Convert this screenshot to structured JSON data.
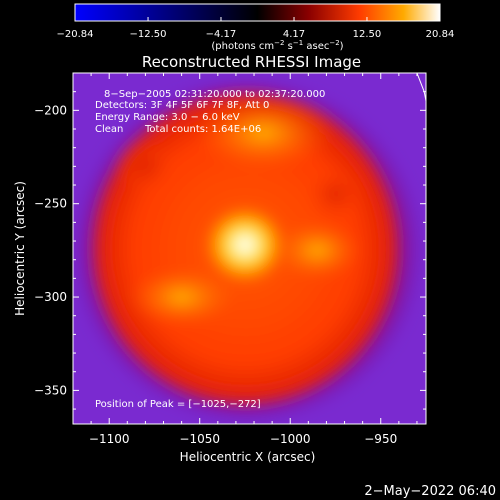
{
  "colorbar": {
    "ticks": [
      "−20.84",
      "−12.50",
      "−4.17",
      "4.17",
      "12.50",
      "20.84"
    ],
    "tick_values": [
      -20.84,
      -12.5,
      -4.17,
      4.17,
      12.5,
      20.84
    ],
    "unit_html": "(photons cm<tspan baseline-shift=\"super\" font-size=\"7\">−2</tspan> s<tspan baseline-shift=\"super\" font-size=\"7\">−1</tspan> asec<tspan baseline-shift=\"super\" font-size=\"7\">−2</tspan>)",
    "colors": [
      "#0000ff",
      "#000000",
      "#7a0000",
      "#ff3a00",
      "#ffaa00",
      "#ffffff"
    ]
  },
  "chart_data": {
    "type": "heatmap",
    "title": "Reconstructed RHESSI Image",
    "xlabel": "Heliocentric X (arcsec)",
    "ylabel": "Heliocentric Y (arcsec)",
    "xlim": [
      -1120,
      -925
    ],
    "ylim": [
      -368,
      -180
    ],
    "xticks": [
      -1100,
      -1050,
      -1000,
      -950
    ],
    "xtick_labels": [
      "−1100",
      "−1050",
      "−1000",
      "−950"
    ],
    "yticks": [
      -200,
      -250,
      -300,
      -350
    ],
    "ytick_labels": [
      "−200",
      "−250",
      "−300",
      "−350"
    ],
    "annotations": [
      "8−Sep−2005 02:31:20.000 to 02:37:20.000",
      "Detectors: 3F 4F 5F 6F 7F 8F, Att 0",
      "Energy Range: 3.0 − 6.0 keV",
      "Clean",
      "Total counts: 1.64E+06"
    ],
    "peak_label": "Position of Peak = [−1025,−272]",
    "peak": [
      -1025,
      -272
    ],
    "limb_line": [
      [
        -930,
        -180
      ],
      [
        -926,
        -190
      ],
      [
        -924,
        -200
      ]
    ]
  },
  "footer": {
    "date": "2−May−2022 06:40"
  }
}
